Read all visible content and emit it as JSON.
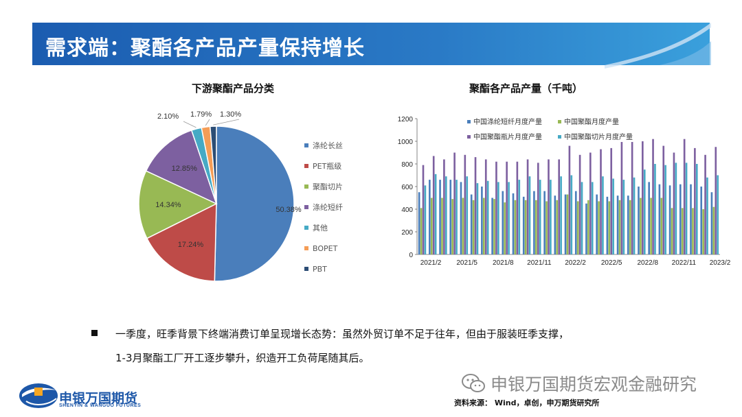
{
  "page": {
    "title": "需求端：聚酯各产品产量保持增长",
    "bullet": {
      "line1": "一季度，旺季背景下终端消费订单呈现增长态势：虽然外贸订单不足于往年，但由于服装旺季支撑，",
      "line2": "1-3月聚酯工厂开工逐步攀升，织造开工负荷尾随其后。"
    },
    "logo": {
      "name": "申银万国期货",
      "english": "SHENYIN & WANGUO FUTURES"
    },
    "watermark": "申银万国期货宏观金融研究",
    "source": "资料来源：  Wind，卓创，申万期货研究所"
  },
  "colors": {
    "banner": "#1a5fb4",
    "polyester_fiber": "#4a7ebb",
    "pet_bottle": "#be4b48",
    "chip": "#98b954",
    "staple": "#7d60a0",
    "other": "#46aac5",
    "bopet": "#f59d56",
    "pbt": "#2c4d75"
  },
  "chart_data": [
    {
      "type": "pie",
      "title": "下游聚酯产品分类",
      "slices": [
        {
          "label": "涤纶长丝",
          "value": 50.38,
          "display": "50.38%"
        },
        {
          "label": "PET瓶级",
          "value": 17.24,
          "display": "17.24%"
        },
        {
          "label": "聚酯切片",
          "value": 14.34,
          "display": "14.34%"
        },
        {
          "label": "涤纶短纤",
          "value": 12.85,
          "display": "12.85%"
        },
        {
          "label": "其他",
          "value": 2.1,
          "display": "2.10%"
        },
        {
          "label": "BOPET",
          "value": 1.79,
          "display": "1.79%"
        },
        {
          "label": "PBT",
          "value": 1.3,
          "display": "1.30%"
        }
      ],
      "legend_position": "right"
    },
    {
      "type": "bar",
      "title": "聚酯各产品产量（千吨）",
      "ylim": [
        0,
        1200
      ],
      "yticks": [
        0,
        200,
        400,
        600,
        800,
        1000,
        1200
      ],
      "xtick_labels": [
        "2021/2",
        "2021/5",
        "2021/8",
        "2021/11",
        "2022/2",
        "2022/5",
        "2022/8",
        "2022/11",
        "2023/2"
      ],
      "legend_position": "top",
      "grid": false,
      "series": [
        {
          "name": "中国涤纶短纤月度产量",
          "values": [
            550,
            660,
            660,
            660,
            640,
            530,
            600,
            500,
            560,
            540,
            510,
            560,
            560,
            520,
            530,
            560,
            450,
            530,
            510,
            520,
            520,
            600,
            640,
            620,
            610,
            620,
            620,
            600,
            550
          ]
        },
        {
          "name": "中国聚酯月度产量",
          "values": [
            410,
            500,
            500,
            490,
            500,
            480,
            500,
            490,
            460,
            480,
            480,
            480,
            470,
            480,
            530,
            470,
            480,
            470,
            470,
            480,
            480,
            500,
            500,
            500,
            410,
            410,
            410,
            400,
            420
          ]
        },
        {
          "name": "中国聚酯瓶片月度产量",
          "values": [
            790,
            870,
            840,
            900,
            880,
            860,
            840,
            820,
            820,
            820,
            840,
            810,
            840,
            840,
            960,
            880,
            900,
            930,
            940,
            1000,
            1000,
            1000,
            1020,
            960,
            900,
            1020,
            940,
            880,
            950
          ]
        },
        {
          "name": "中国聚酯切片月度产量",
          "values": [
            610,
            710,
            690,
            660,
            690,
            630,
            650,
            640,
            640,
            660,
            690,
            660,
            660,
            690,
            700,
            640,
            640,
            690,
            670,
            660,
            680,
            750,
            800,
            790,
            810,
            810,
            800,
            680,
            700
          ]
        }
      ]
    }
  ]
}
